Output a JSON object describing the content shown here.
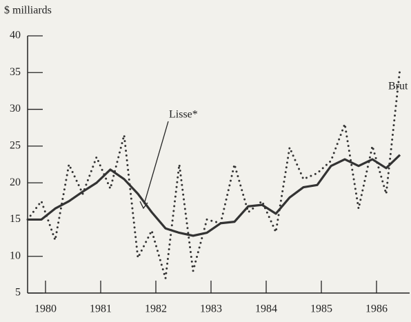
{
  "chart_data": {
    "type": "line",
    "y_label": "$ milliards",
    "annotations": [
      "Lisse*",
      "Brut"
    ],
    "x": [
      1980.175,
      1980.425,
      1980.675,
      1980.925,
      1981.175,
      1981.425,
      1981.675,
      1981.925,
      1982.175,
      1982.425,
      1982.675,
      1982.925,
      1983.175,
      1983.425,
      1983.675,
      1983.925,
      1984.175,
      1984.425,
      1984.675,
      1984.925,
      1985.175,
      1985.425,
      1985.675,
      1985.925,
      1986.175,
      1986.425,
      1986.675,
      1986.925
    ],
    "series": [
      {
        "name": "Lisse*",
        "color": "#333333",
        "style": "solid",
        "values": [
          15,
          15,
          16.5,
          17.5,
          18.8,
          20,
          21.8,
          20.5,
          18.5,
          16,
          13.8,
          13.2,
          12.8,
          13.2,
          14.5,
          14.7,
          16.8,
          17,
          15.8,
          18,
          19.4,
          19.7,
          22.3,
          23.2,
          22.3,
          23.2,
          22,
          23.8
        ]
      },
      {
        "name": "Brut",
        "color": "#333333",
        "style": "dotted",
        "values": [
          15,
          17.5,
          12.2,
          22.5,
          18.5,
          23.5,
          19.2,
          26.5,
          9.8,
          13.5,
          7,
          22.5,
          8,
          15,
          14.5,
          22.5,
          16,
          17.5,
          13.3,
          24.8,
          20.5,
          21.3,
          23,
          28,
          16.5,
          25,
          18.5,
          35.5
        ]
      }
    ],
    "xlim": [
      1980.175,
      1987.1
    ],
    "xticks": [
      {
        "value": 1980.5,
        "label": "1980"
      },
      {
        "value": 1981.5,
        "label": "1981"
      },
      {
        "value": 1982.5,
        "label": "1982"
      },
      {
        "value": 1983.5,
        "label": "1983"
      },
      {
        "value": 1984.5,
        "label": "1984"
      },
      {
        "value": 1985.5,
        "label": "1985"
      },
      {
        "value": 1986.5,
        "label": "1986"
      }
    ],
    "ylim": [
      5,
      40
    ],
    "yticks": [
      5,
      10,
      15,
      20,
      25,
      30,
      35,
      40
    ]
  }
}
